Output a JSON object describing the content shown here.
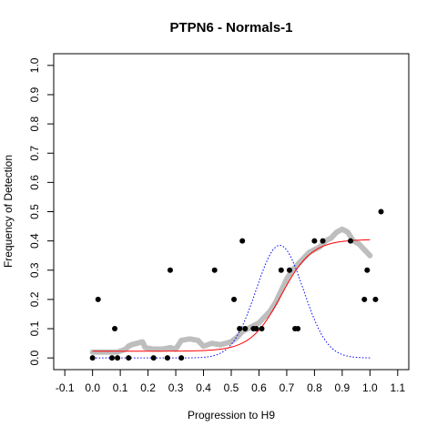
{
  "chart_data": {
    "type": "scatter",
    "title": "PTPN6 - Normals-1",
    "xlabel": "Progression to H9",
    "ylabel": "Frequency of Detection",
    "xlim": [
      -0.14,
      1.14
    ],
    "ylim": [
      -0.04,
      1.04
    ],
    "x_ticks": [
      "-0.1",
      "0.0",
      "0.1",
      "0.2",
      "0.3",
      "0.4",
      "0.5",
      "0.6",
      "0.7",
      "0.8",
      "0.9",
      "1.0",
      "1.1"
    ],
    "y_ticks": [
      "0.0",
      "0.1",
      "0.2",
      "0.3",
      "0.4",
      "0.5",
      "0.6",
      "0.7",
      "0.8",
      "0.9",
      "1.0"
    ],
    "grid": false,
    "legend": "none",
    "colors": {
      "observed": "#000000",
      "smoothed": "#bebebe",
      "fit": "#ff0000",
      "density": "#0000ff"
    },
    "observed_points": [
      {
        "x": 0.0,
        "y": 0.0
      },
      {
        "x": 0.02,
        "y": 0.2
      },
      {
        "x": 0.07,
        "y": 0.0
      },
      {
        "x": 0.08,
        "y": 0.1
      },
      {
        "x": 0.09,
        "y": 0.0
      },
      {
        "x": 0.13,
        "y": 0.0
      },
      {
        "x": 0.22,
        "y": 0.0
      },
      {
        "x": 0.27,
        "y": 0.0
      },
      {
        "x": 0.28,
        "y": 0.3
      },
      {
        "x": 0.32,
        "y": 0.0
      },
      {
        "x": 0.44,
        "y": 0.3
      },
      {
        "x": 0.51,
        "y": 0.2
      },
      {
        "x": 0.53,
        "y": 0.1
      },
      {
        "x": 0.54,
        "y": 0.4
      },
      {
        "x": 0.55,
        "y": 0.1
      },
      {
        "x": 0.58,
        "y": 0.1
      },
      {
        "x": 0.59,
        "y": 0.1
      },
      {
        "x": 0.61,
        "y": 0.1
      },
      {
        "x": 0.68,
        "y": 0.3
      },
      {
        "x": 0.71,
        "y": 0.3
      },
      {
        "x": 0.73,
        "y": 0.1
      },
      {
        "x": 0.74,
        "y": 0.1
      },
      {
        "x": 0.8,
        "y": 0.4
      },
      {
        "x": 0.83,
        "y": 0.4
      },
      {
        "x": 0.93,
        "y": 0.4
      },
      {
        "x": 0.98,
        "y": 0.2
      },
      {
        "x": 0.99,
        "y": 0.3
      },
      {
        "x": 1.02,
        "y": 0.2
      },
      {
        "x": 1.04,
        "y": 0.5
      }
    ],
    "smoothed_trace": [
      [
        0.0,
        0.02
      ],
      [
        0.03,
        0.02
      ],
      [
        0.06,
        0.02
      ],
      [
        0.09,
        0.02
      ],
      [
        0.12,
        0.03
      ],
      [
        0.13,
        0.04
      ],
      [
        0.14,
        0.045
      ],
      [
        0.16,
        0.05
      ],
      [
        0.18,
        0.055
      ],
      [
        0.19,
        0.035
      ],
      [
        0.22,
        0.03
      ],
      [
        0.25,
        0.03
      ],
      [
        0.28,
        0.035
      ],
      [
        0.3,
        0.03
      ],
      [
        0.32,
        0.06
      ],
      [
        0.35,
        0.065
      ],
      [
        0.38,
        0.06
      ],
      [
        0.4,
        0.04
      ],
      [
        0.43,
        0.05
      ],
      [
        0.46,
        0.045
      ],
      [
        0.48,
        0.05
      ],
      [
        0.5,
        0.055
      ],
      [
        0.52,
        0.07
      ],
      [
        0.54,
        0.09
      ],
      [
        0.56,
        0.1
      ],
      [
        0.58,
        0.11
      ],
      [
        0.6,
        0.12
      ],
      [
        0.62,
        0.14
      ],
      [
        0.64,
        0.16
      ],
      [
        0.66,
        0.19
      ],
      [
        0.68,
        0.23
      ],
      [
        0.7,
        0.27
      ],
      [
        0.72,
        0.3
      ],
      [
        0.74,
        0.32
      ],
      [
        0.76,
        0.34
      ],
      [
        0.78,
        0.36
      ],
      [
        0.8,
        0.37
      ],
      [
        0.82,
        0.38
      ],
      [
        0.84,
        0.4
      ],
      [
        0.86,
        0.41
      ],
      [
        0.88,
        0.43
      ],
      [
        0.9,
        0.44
      ],
      [
        0.92,
        0.43
      ],
      [
        0.94,
        0.4
      ],
      [
        0.96,
        0.39
      ],
      [
        0.98,
        0.37
      ],
      [
        1.0,
        0.35
      ]
    ],
    "fit_curve": {
      "min": 0.023,
      "max": 0.405,
      "center": 0.68,
      "scale": 0.055,
      "x_range": [
        0.0,
        1.0
      ]
    },
    "density_curve": {
      "peak": 0.385,
      "mean": 0.675,
      "sd": 0.085,
      "x_range": [
        0.0,
        1.0
      ]
    }
  }
}
